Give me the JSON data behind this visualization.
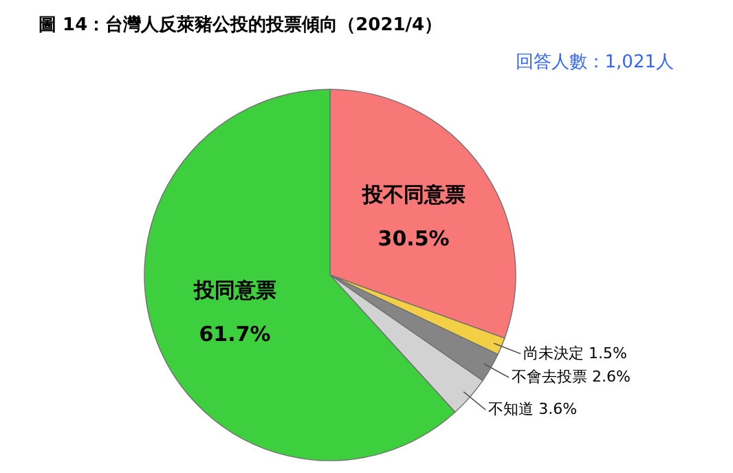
{
  "chart_data": {
    "type": "pie",
    "title": "圖 14：台灣人反萊豬公投的投票傾向（2021/4）",
    "annotations": [
      "回答人數：1,021人"
    ],
    "categories": [
      "投不同意票",
      "尚未決定",
      "不會去投票",
      "不知道",
      "投同意票"
    ],
    "values": [
      30.5,
      1.5,
      2.6,
      3.6,
      61.7
    ],
    "value_labels": [
      "30.5%",
      "1.5%",
      "2.6%",
      "3.6%",
      "61.7%"
    ],
    "colors": [
      "#f87878",
      "#f2cf45",
      "#858585",
      "#d2d2d2",
      "#3ecf3e"
    ]
  }
}
